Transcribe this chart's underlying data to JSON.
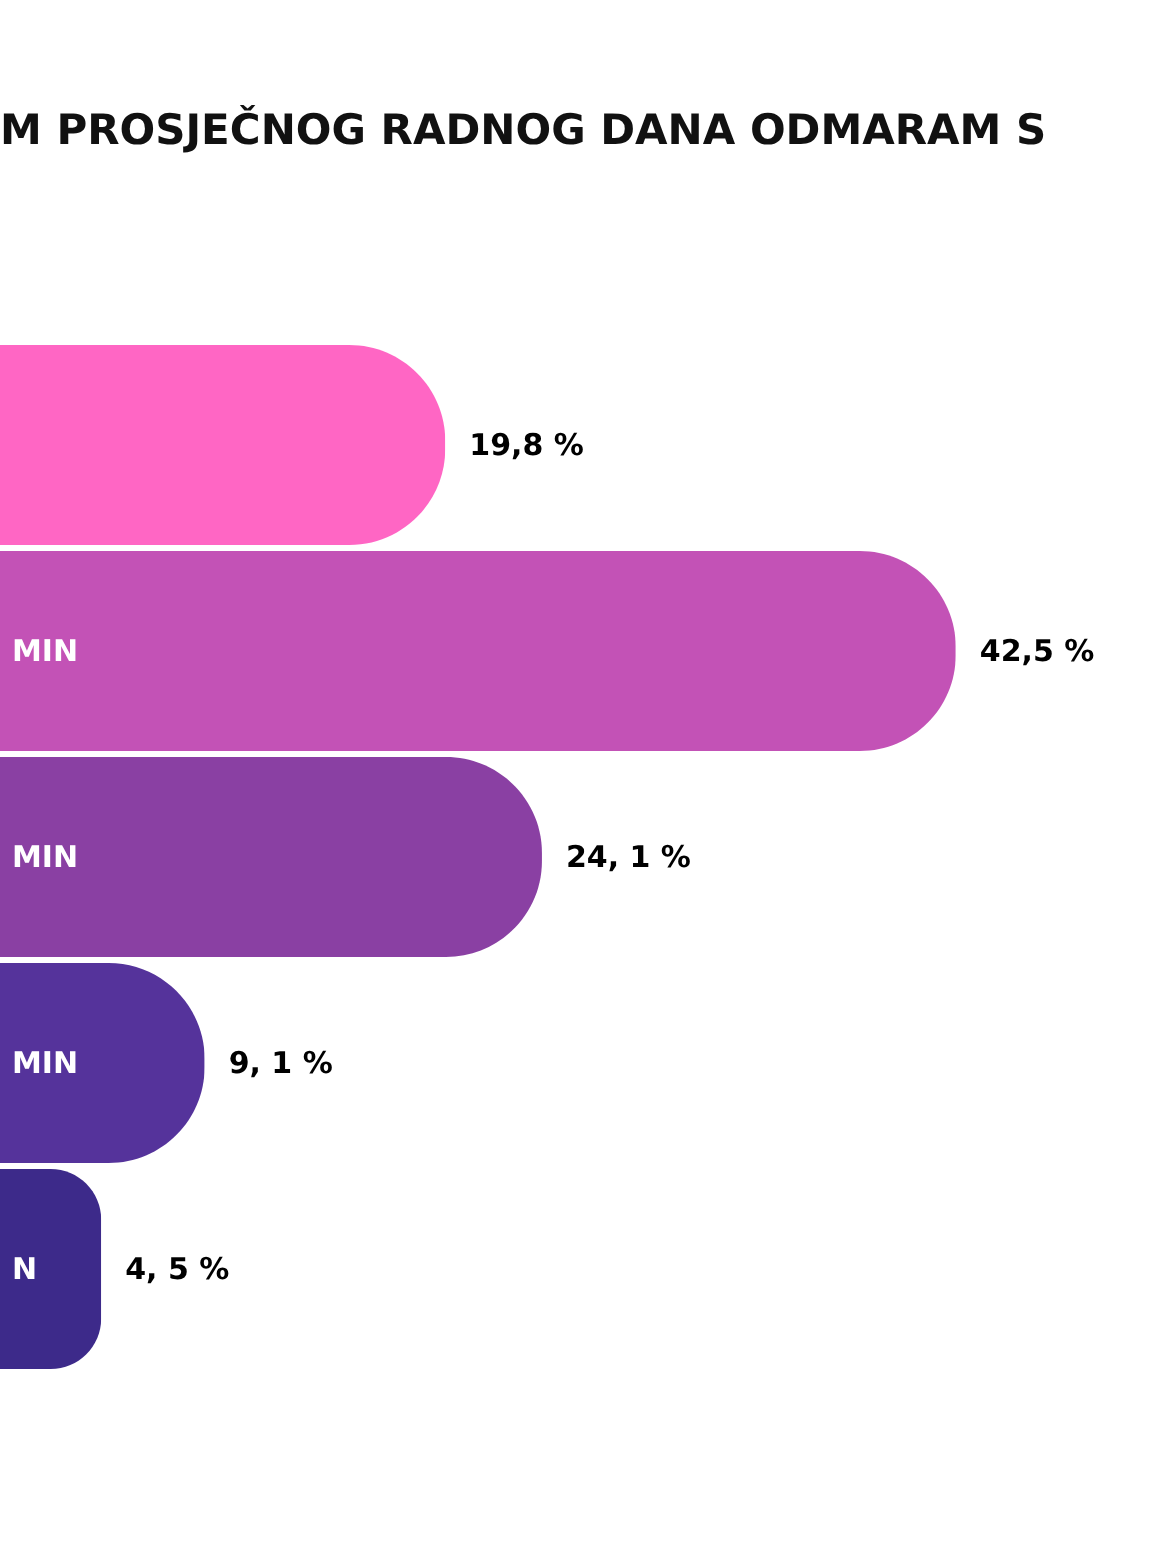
{
  "chart_data": {
    "type": "bar",
    "orientation": "horizontal",
    "title": "M PROSJEČNOG RADNOG DANA ODMARAM S",
    "categories": [
      null,
      "MIN",
      "MIN",
      "MIN",
      "N"
    ],
    "values": [
      19.8,
      42.5,
      24.1,
      9.1,
      4.5
    ],
    "colors": [
      "#ff66c4",
      "#c352b6",
      "#8a40a3",
      "#55339b",
      "#3d2a8a"
    ],
    "value_labels": [
      "19,8 %",
      "42,5 %",
      "24, 1 %",
      "9, 1 %",
      "4, 5 %"
    ]
  }
}
